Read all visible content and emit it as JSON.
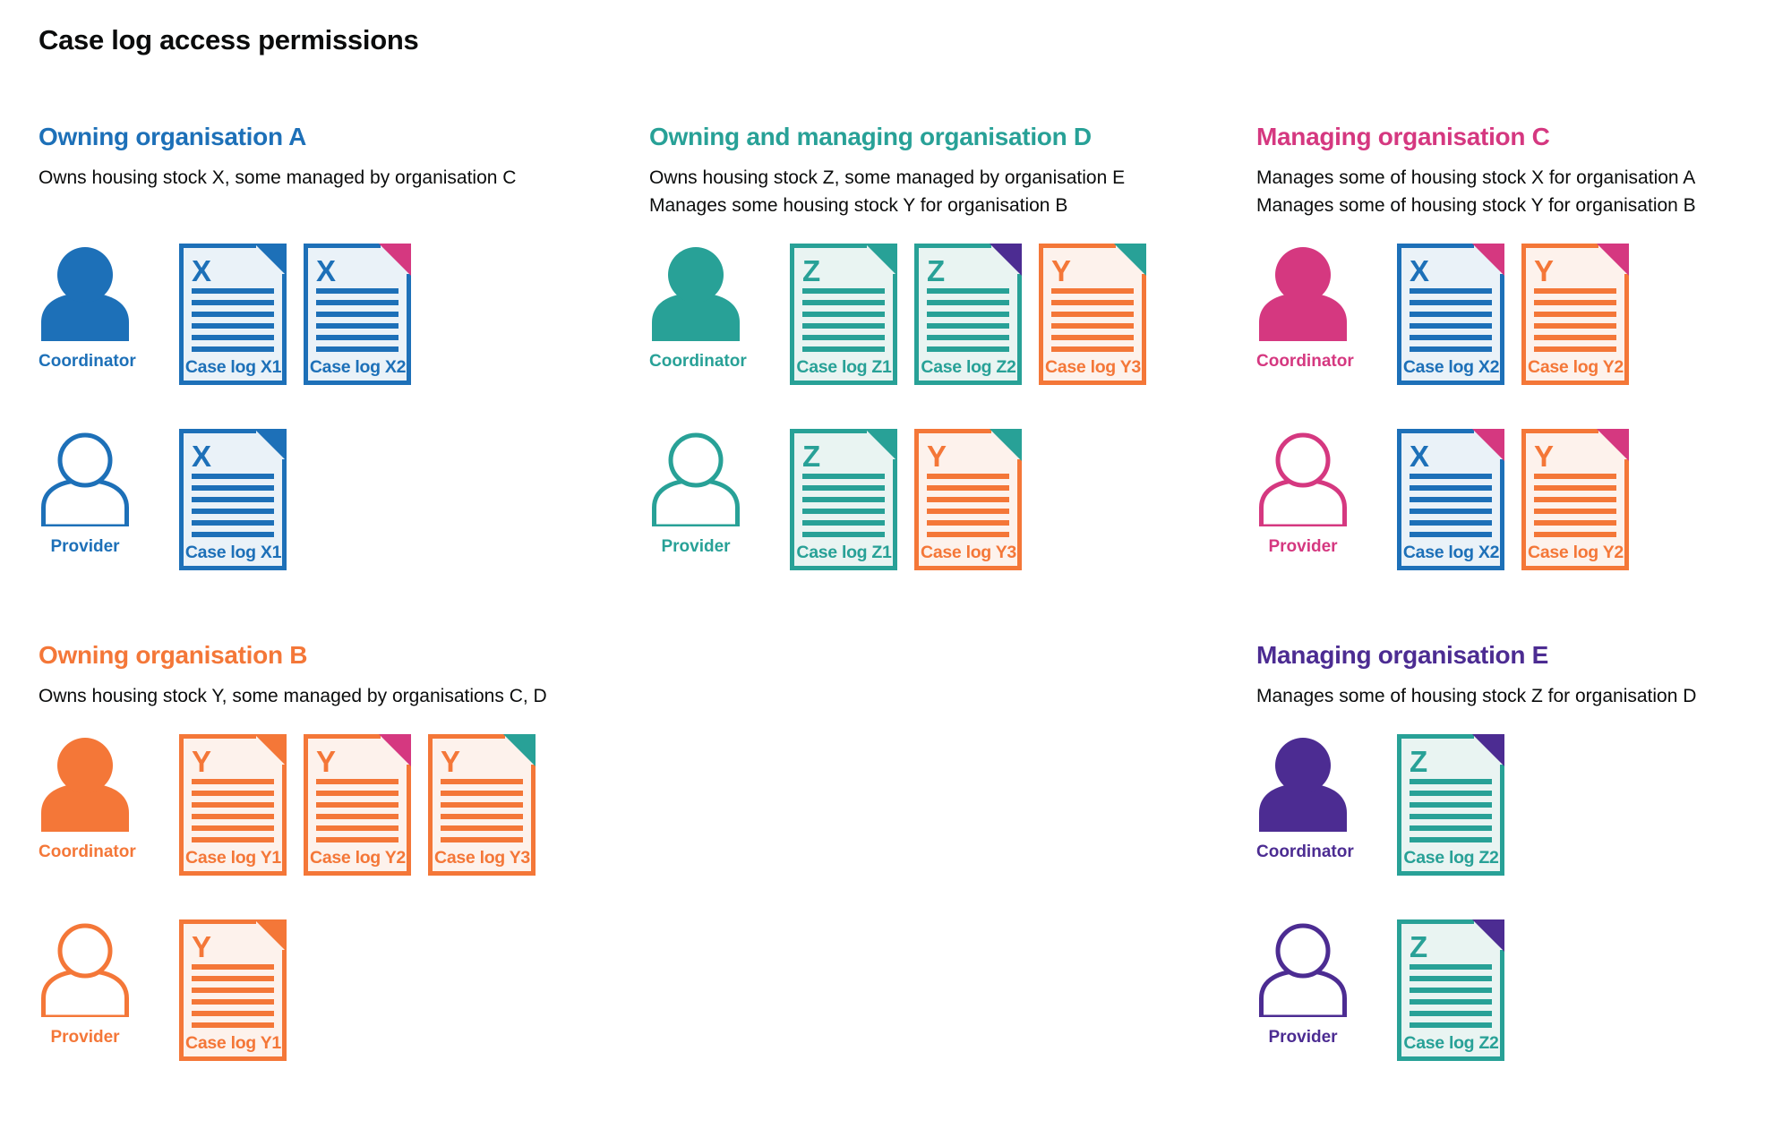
{
  "title": "Case log access permissions",
  "palette": {
    "blue": "#1d70b8",
    "teal": "#28a197",
    "orange": "#f47738",
    "pink": "#d53880",
    "purple": "#4c2c92",
    "blue_tint": "#eaf2f8",
    "teal_tint": "#e9f4f2",
    "orange_tint": "#fdf2ec",
    "text": "#0b0c0c",
    "background": "#ffffff"
  },
  "sections": [
    {
      "id": "org-a",
      "heading": "Owning organisation A",
      "color": "blue",
      "description_lines": [
        "Owns housing stock X, some managed by organisation C"
      ],
      "rows": [
        {
          "role": "Coordinator",
          "person_style": "filled",
          "docs": [
            {
              "letter": "X",
              "label": "Case log X1",
              "doc_color": "blue",
              "fold_color": "blue"
            },
            {
              "letter": "X",
              "label": "Case log X2",
              "doc_color": "blue",
              "fold_color": "pink"
            }
          ]
        },
        {
          "role": "Provider",
          "person_style": "outline",
          "docs": [
            {
              "letter": "X",
              "label": "Case log X1",
              "doc_color": "blue",
              "fold_color": "blue"
            }
          ]
        }
      ]
    },
    {
      "id": "org-d",
      "heading": "Owning and managing organisation D",
      "color": "teal",
      "description_lines": [
        "Owns housing stock Z, some managed by organisation E",
        "Manages some housing stock Y for organisation B"
      ],
      "rows": [
        {
          "role": "Coordinator",
          "person_style": "filled",
          "docs": [
            {
              "letter": "Z",
              "label": "Case log Z1",
              "doc_color": "teal",
              "fold_color": "teal"
            },
            {
              "letter": "Z",
              "label": "Case log Z2",
              "doc_color": "teal",
              "fold_color": "purple"
            },
            {
              "letter": "Y",
              "label": "Case log Y3",
              "doc_color": "orange",
              "fold_color": "teal"
            }
          ]
        },
        {
          "role": "Provider",
          "person_style": "outline",
          "docs": [
            {
              "letter": "Z",
              "label": "Case log Z1",
              "doc_color": "teal",
              "fold_color": "teal"
            },
            {
              "letter": "Y",
              "label": "Case log Y3",
              "doc_color": "orange",
              "fold_color": "teal"
            }
          ]
        }
      ]
    },
    {
      "id": "org-c",
      "heading": "Managing organisation C",
      "color": "pink",
      "description_lines": [
        "Manages some of housing stock X for organisation A",
        "Manages some of housing stock Y for organisation B"
      ],
      "rows": [
        {
          "role": "Coordinator",
          "person_style": "filled",
          "docs": [
            {
              "letter": "X",
              "label": "Case log X2",
              "doc_color": "blue",
              "fold_color": "pink"
            },
            {
              "letter": "Y",
              "label": "Case log Y2",
              "doc_color": "orange",
              "fold_color": "pink"
            }
          ]
        },
        {
          "role": "Provider",
          "person_style": "outline",
          "docs": [
            {
              "letter": "X",
              "label": "Case log X2",
              "doc_color": "blue",
              "fold_color": "pink"
            },
            {
              "letter": "Y",
              "label": "Case log Y2",
              "doc_color": "orange",
              "fold_color": "pink"
            }
          ]
        }
      ]
    },
    {
      "id": "org-b",
      "heading": "Owning organisation B",
      "color": "orange",
      "description_lines": [
        "Owns housing stock Y, some managed by organisations C, D"
      ],
      "rows": [
        {
          "role": "Coordinator",
          "person_style": "filled",
          "docs": [
            {
              "letter": "Y",
              "label": "Case log Y1",
              "doc_color": "orange",
              "fold_color": "orange"
            },
            {
              "letter": "Y",
              "label": "Case log Y2",
              "doc_color": "orange",
              "fold_color": "pink"
            },
            {
              "letter": "Y",
              "label": "Case log Y3",
              "doc_color": "orange",
              "fold_color": "teal"
            }
          ]
        },
        {
          "role": "Provider",
          "person_style": "outline",
          "docs": [
            {
              "letter": "Y",
              "label": "Case log Y1",
              "doc_color": "orange",
              "fold_color": "orange"
            }
          ]
        }
      ]
    },
    {
      "id": "org-e",
      "heading": "Managing organisation E",
      "color": "purple",
      "description_lines": [
        "Manages some of housing stock Z for organisation D"
      ],
      "rows": [
        {
          "role": "Coordinator",
          "person_style": "filled",
          "docs": [
            {
              "letter": "Z",
              "label": "Case log Z2",
              "doc_color": "teal",
              "fold_color": "purple"
            }
          ]
        },
        {
          "role": "Provider",
          "person_style": "outline",
          "docs": [
            {
              "letter": "Z",
              "label": "Case log Z2",
              "doc_color": "teal",
              "fold_color": "purple"
            }
          ]
        }
      ]
    }
  ]
}
